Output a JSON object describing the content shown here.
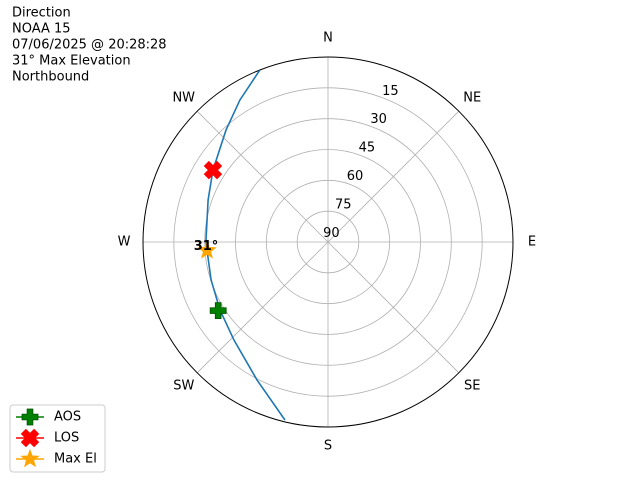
{
  "chart_data": {
    "type": "polar",
    "text_lines": [
      "Direction",
      "NOAA 15",
      "07/06/2025 @ 20:28:28",
      "31° Max Elevation",
      "Northbound"
    ],
    "theta_zero": "N",
    "theta_direction": "clockwise",
    "thetaticks": [
      {
        "value": 0,
        "label": "N"
      },
      {
        "value": 45,
        "label": "NE"
      },
      {
        "value": 90,
        "label": "E"
      },
      {
        "value": 135,
        "label": "SE"
      },
      {
        "value": 180,
        "label": "S"
      },
      {
        "value": 225,
        "label": "SW"
      },
      {
        "value": 270,
        "label": "W"
      },
      {
        "value": 315,
        "label": "NW"
      }
    ],
    "rlim": [
      90,
      0
    ],
    "rticks": [
      90,
      75,
      60,
      45,
      30,
      15
    ],
    "grid": true,
    "legend": "lower left",
    "track": {
      "color": "#1f77b4",
      "theta": [
        193.6,
        207.2,
        223.8,
        237.8,
        252.0,
        270.0,
        289.3,
        302.0,
        317.7,
        328.2,
        338.4
      ],
      "r": [
        0.9,
        14.5,
        23.9,
        27.9,
        30.2,
        30.6,
        28.2,
        24.0,
        16.3,
        8.7,
        0.0
      ]
    },
    "markers": [
      {
        "name": "AOS",
        "color": "green",
        "marker": "plus",
        "theta": 238,
        "r": 27
      },
      {
        "name": "LOS",
        "color": "red",
        "marker": "x",
        "theta": 302,
        "r": 24
      },
      {
        "name": "Max El",
        "color": "orange",
        "marker": "star",
        "theta": 266,
        "r": 31,
        "label": "31°"
      }
    ]
  }
}
